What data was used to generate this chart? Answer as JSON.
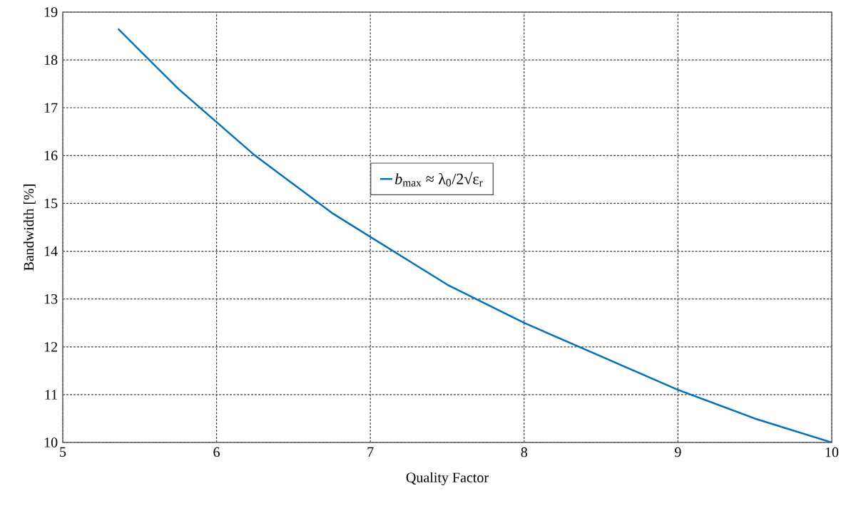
{
  "chart_data": {
    "type": "line",
    "xlabel": "Quality Factor",
    "ylabel": "Bandwidth [%]",
    "x": [
      5.36,
      5.5,
      5.75,
      6,
      6.25,
      6.5,
      6.75,
      7,
      7.5,
      8,
      8.5,
      9,
      9.5,
      10
    ],
    "series": [
      {
        "name": "*b*$_{max}$ ≈ λ$_{0}$/2√ε$_{r}$",
        "color": "#0072bd",
        "values": [
          18.65,
          18.2,
          17.4,
          16.7,
          16.0,
          15.4,
          14.8,
          14.3,
          13.3,
          12.5,
          11.8,
          11.1,
          10.5,
          10.0
        ]
      }
    ],
    "xlim": [
      5,
      10
    ],
    "ylim": [
      10,
      19
    ],
    "xticks": [
      5,
      6,
      7,
      8,
      9,
      10
    ],
    "yticks": [
      10,
      11,
      12,
      13,
      14,
      15,
      16,
      17,
      18,
      19
    ],
    "grid": true,
    "legend": "center",
    "marker": "none",
    "line_style": "solid"
  }
}
